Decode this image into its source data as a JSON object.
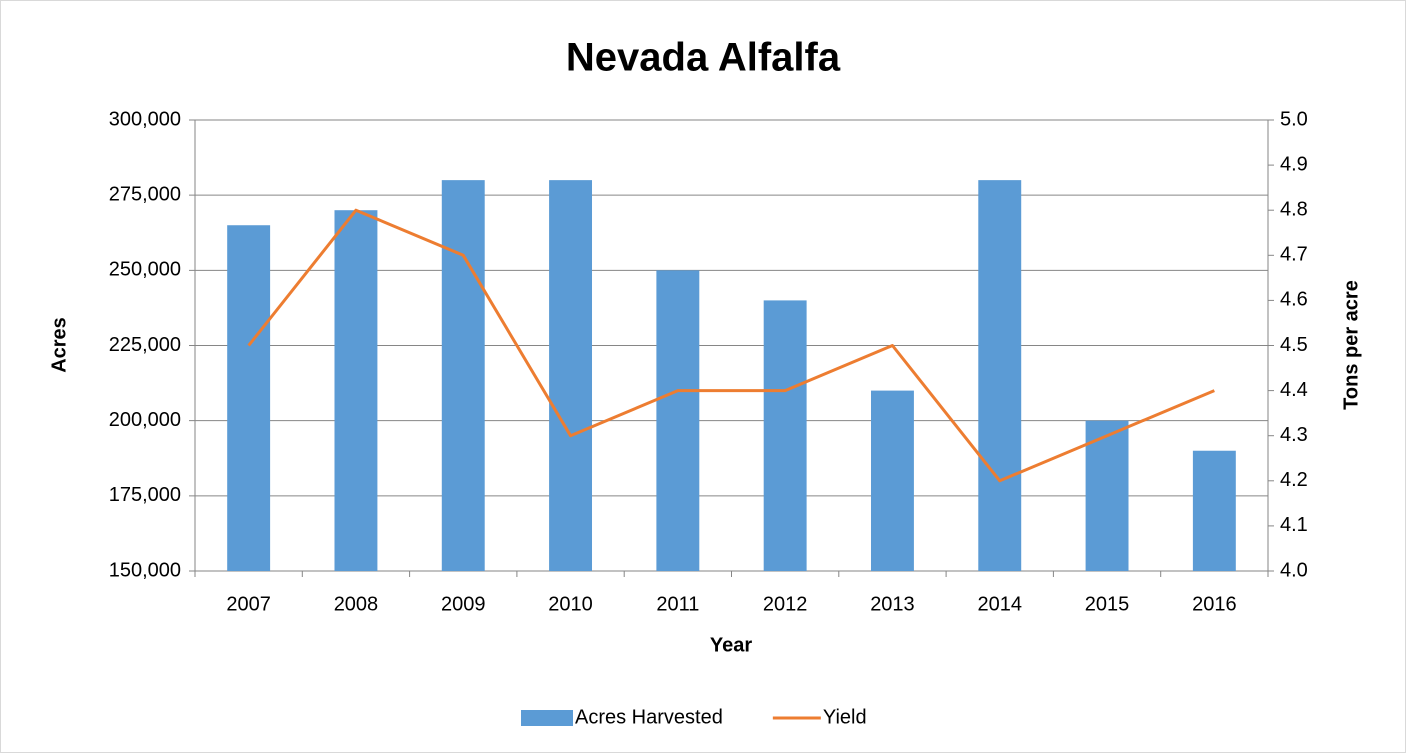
{
  "chart_data": {
    "type": "bar",
    "title": "Nevada Alfalfa",
    "x_label": "Year",
    "y_label": "Acres",
    "y2_label": "Tons per acre",
    "categories": [
      "2007",
      "2008",
      "2009",
      "2010",
      "2011",
      "2012",
      "2013",
      "2014",
      "2015",
      "2016"
    ],
    "series": [
      {
        "name": "Acres Harvested",
        "color": "#5b9bd5",
        "type": "bar",
        "values": [
          265000,
          270000,
          280000,
          280000,
          250000,
          240000,
          210000,
          280000,
          200000,
          190000
        ]
      },
      {
        "name": "Yield",
        "color": "#ed7d31",
        "type": "line",
        "axis": "y2",
        "values": [
          4.5,
          4.8,
          4.7,
          4.3,
          4.4,
          4.4,
          4.5,
          4.2,
          4.3,
          4.4
        ]
      }
    ],
    "ylim": [
      150000,
      300000
    ],
    "yticks": [
      {
        "value": 150000,
        "label": "150,000"
      },
      {
        "value": 175000,
        "label": "175,000"
      },
      {
        "value": 200000,
        "label": "200,000"
      },
      {
        "value": 225000,
        "label": "225,000"
      },
      {
        "value": 250000,
        "label": "250,000"
      },
      {
        "value": 275000,
        "label": "275,000"
      },
      {
        "value": 300000,
        "label": "300,000"
      }
    ],
    "y2lim": [
      4,
      5
    ],
    "y2ticks": [
      {
        "value": 4,
        "label": "4.0"
      },
      4.1,
      4.2,
      4.3,
      4.4,
      4.5,
      4.6,
      4.7,
      4.8,
      4.9,
      {
        "value": 5,
        "label": "5.0"
      }
    ],
    "grid": true,
    "legend": "bottom"
  }
}
